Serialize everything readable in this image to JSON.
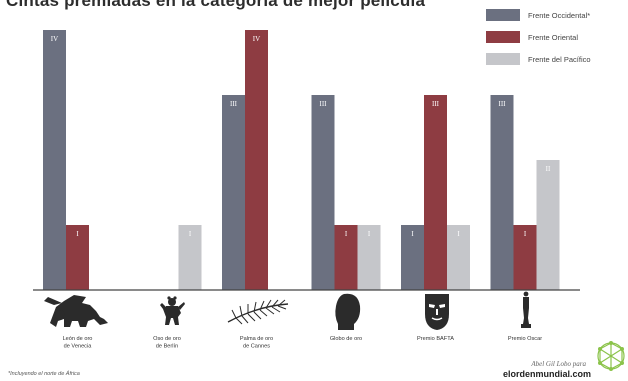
{
  "title": "Cintas premiadas en la categoría de mejor película",
  "footnote": "*Incluyendo el norte de África",
  "credit": {
    "author": "Abel Gil Lobo para",
    "site": "elordenmundial.com"
  },
  "colors": {
    "occidental": "#6b7080",
    "oriental": "#8e3c42",
    "pacifico": "#c5c6ca"
  },
  "chart_data": {
    "type": "bar",
    "categories": [
      [
        "León de oro",
        "de Venecia"
      ],
      [
        "Oso de oro",
        "de Berlín"
      ],
      [
        "Palma de oro",
        "de Cannes"
      ],
      [
        "Globo de oro"
      ],
      [
        "Premio BAFTA"
      ],
      [
        "Premio Oscar"
      ]
    ],
    "category_icons": [
      "lion-icon",
      "bear-icon",
      "palm-icon",
      "globe-icon",
      "bafta-mask-icon",
      "oscar-statuette-icon"
    ],
    "series": [
      {
        "name": "Frente Occidental*",
        "color": "#6b7080",
        "values": [
          4,
          0,
          3,
          3,
          1,
          3
        ],
        "labels": [
          "IV",
          "",
          "III",
          "III",
          "I",
          "III"
        ]
      },
      {
        "name": "Frente Oriental",
        "color": "#8e3c42",
        "values": [
          1,
          0,
          4,
          1,
          3,
          1
        ],
        "labels": [
          "I",
          "",
          "IV",
          "I",
          "III",
          "I"
        ]
      },
      {
        "name": "Frente del Pacífico",
        "color": "#c5c6ca",
        "values": [
          0,
          1,
          0,
          1,
          1,
          2
        ],
        "labels": [
          "",
          "I",
          "",
          "I",
          "I",
          "II"
        ]
      }
    ],
    "ylim": [
      0,
      4
    ],
    "grid": false,
    "legend": "top-right"
  }
}
